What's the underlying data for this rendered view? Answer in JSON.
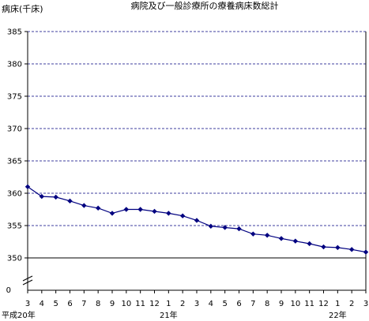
{
  "chart_data": {
    "type": "line",
    "title": "病院及び一般診療所の療養病床数総計",
    "ylabel": "病床(千床)",
    "xlabel": "",
    "ylim": [
      350,
      385
    ],
    "y_axis_floor_label": "0",
    "yticks": [
      350,
      355,
      360,
      365,
      370,
      375,
      380,
      385
    ],
    "grid": "horizontal-dashed",
    "legend": "none",
    "categories": [
      "3",
      "4",
      "5",
      "6",
      "7",
      "8",
      "9",
      "10",
      "11",
      "12",
      "1",
      "2",
      "3",
      "4",
      "5",
      "6",
      "7",
      "8",
      "9",
      "10",
      "11",
      "12",
      "1",
      "2",
      "3"
    ],
    "year_labels": [
      {
        "index": 0,
        "label": "平成20年"
      },
      {
        "index": 10,
        "label": "21年"
      },
      {
        "index": 22,
        "label": "22年"
      }
    ],
    "series": [
      {
        "color": "#000080",
        "values": [
          361.0,
          359.5,
          359.4,
          358.8,
          358.1,
          357.7,
          356.9,
          357.5,
          357.5,
          357.2,
          356.9,
          356.5,
          355.8,
          354.9,
          354.7,
          354.5,
          353.7,
          353.5,
          353.0,
          352.6,
          352.2,
          351.7,
          351.6,
          351.3,
          350.9
        ]
      }
    ]
  }
}
